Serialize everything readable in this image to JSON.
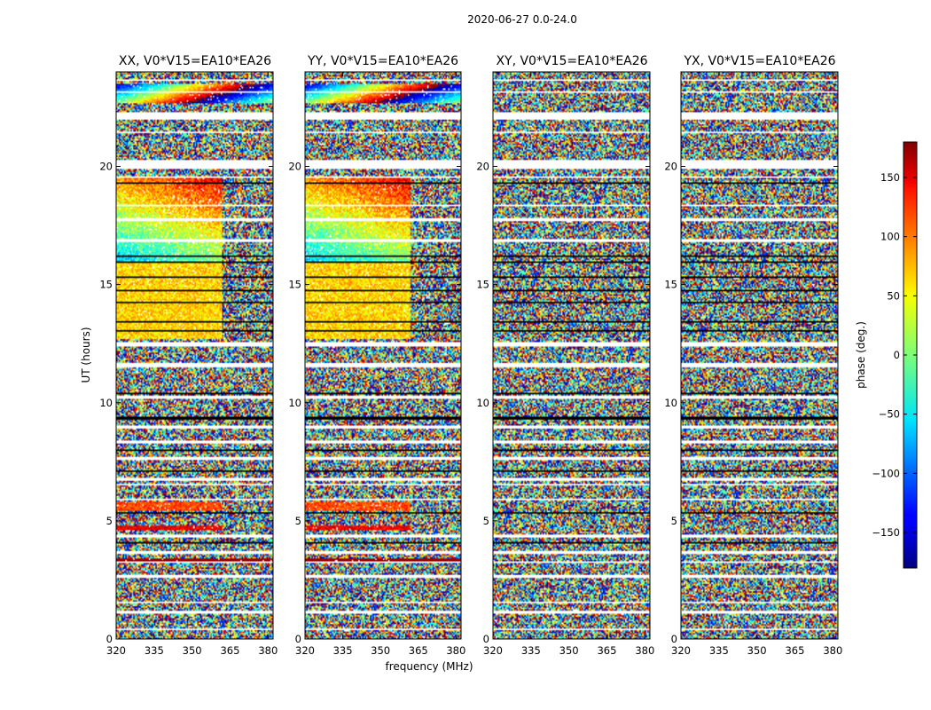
{
  "figure": {
    "suptitle": "2020-06-27 0.0-24.0"
  },
  "chart_data": {
    "type": "heatmap",
    "panels": [
      {
        "title": "XX, V0*V15=EA10*EA26",
        "pattern": "parallel"
      },
      {
        "title": "YY, V0*V15=EA10*EA26",
        "pattern": "parallel"
      },
      {
        "title": "XY, V0*V15=EA10*EA26",
        "pattern": "cross"
      },
      {
        "title": "YX, V0*V15=EA10*EA26",
        "pattern": "cross"
      }
    ],
    "xlabel": "frequency (MHz)",
    "ylabel": "UT (hours)",
    "xlim": [
      320,
      382
    ],
    "ylim": [
      0,
      24
    ],
    "xticks": [
      320,
      335,
      350,
      365,
      380
    ],
    "yticks": [
      0,
      5,
      10,
      15,
      20
    ],
    "colorbar": {
      "label": "phase (deg.)",
      "range": [
        -180,
        180
      ],
      "ticks": [
        150,
        100,
        50,
        0,
        -50,
        -100,
        -150
      ],
      "tick_labels": [
        "150",
        "100",
        "50",
        "0",
        "−50",
        "−100",
        "−150"
      ],
      "colormap": "jet"
    },
    "notable_features": [
      "coherent phase (~60 deg) from ~13 to ~16 UT below ~360 MHz in XX and YY",
      "phase gradient band from ~16 to ~19.5 UT below ~360 MHz in XX and YY",
      "coherent band near 5.5 UT below ~363 MHz in XX and YY",
      "cross-hand (XY, YX) phases appear random"
    ],
    "grid": false
  }
}
